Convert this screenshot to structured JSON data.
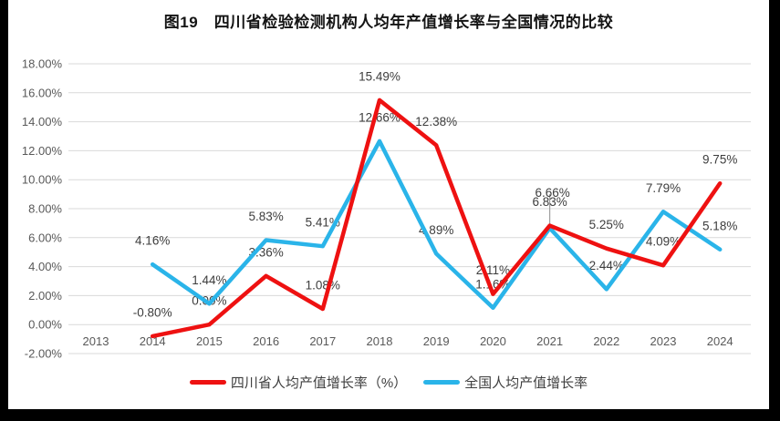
{
  "title": "图19　四川省检验检测机构人均年产值增长率与全国情况的比较",
  "colors": {
    "background": "#ffffff",
    "scan_border": "#000000",
    "grid": "#d9d9d9",
    "axis_text": "#595959",
    "data_label_text": "#3d3d3d",
    "leader_line": "#a0a0a0",
    "sichuan_red": "#ee1111",
    "national_blue": "#2ab4e9"
  },
  "chart_data": {
    "type": "line",
    "title": "图19　四川省检验检测机构人均年产值增长率与全国情况的比较",
    "categories": [
      2013,
      2014,
      2015,
      2016,
      2017,
      2018,
      2019,
      2020,
      2021,
      2022,
      2023,
      2024
    ],
    "ylim": [
      -2,
      18
    ],
    "y_tick_values": [
      18,
      16,
      14,
      12,
      10,
      8,
      6,
      4,
      2,
      0,
      -2
    ],
    "y_tick_labels": [
      "18.00%",
      "16.00%",
      "14.00%",
      "12.00%",
      "10.00%",
      "8.00%",
      "6.00%",
      "4.00%",
      "2.00%",
      "0.00%",
      "-2.00%"
    ],
    "grid": true,
    "legend_position": "bottom",
    "series": [
      {
        "name": "四川省人均产值增长率（%）",
        "color": "#ee1111",
        "years": [
          2014,
          2015,
          2016,
          2017,
          2018,
          2019,
          2020,
          2021,
          2022,
          2023,
          2024
        ],
        "values": [
          -0.8,
          0.0,
          3.36,
          1.08,
          15.49,
          12.38,
          2.11,
          6.83,
          5.25,
          4.09,
          9.75
        ],
        "labels": [
          "-0.80%",
          "0.00%",
          "3.36%",
          "1.08%",
          "15.49%",
          "12.38%",
          "2.11%",
          "6.83%",
          "5.25%",
          "4.09%",
          "9.75%"
        ]
      },
      {
        "name": "全国人均产值增长率",
        "color": "#2ab4e9",
        "years": [
          2014,
          2015,
          2016,
          2017,
          2018,
          2019,
          2020,
          2021,
          2022,
          2023,
          2024
        ],
        "values": [
          4.16,
          1.44,
          5.83,
          5.41,
          12.66,
          4.89,
          1.16,
          6.66,
          2.44,
          7.79,
          5.18
        ],
        "labels": [
          "4.16%",
          "1.44%",
          "5.83%",
          "5.41%",
          "12.66%",
          "4.89%",
          "1.16%",
          "6.66%",
          "2.44%",
          "7.79%",
          "5.18%"
        ]
      }
    ],
    "label_offset_overrides": [
      {
        "series": 1,
        "year": 2021,
        "dx": 3,
        "dy": -13
      }
    ],
    "annotations": {
      "leader_line": {
        "x_year": 2021,
        "y_from_value": 9.0,
        "y_to_value": 6.87
      }
    }
  },
  "legend": {
    "items": [
      {
        "label": "四川省人均产值增长率（%）",
        "color": "#ee1111"
      },
      {
        "label": "全国人均产值增长率",
        "color": "#2ab4e9"
      }
    ]
  }
}
